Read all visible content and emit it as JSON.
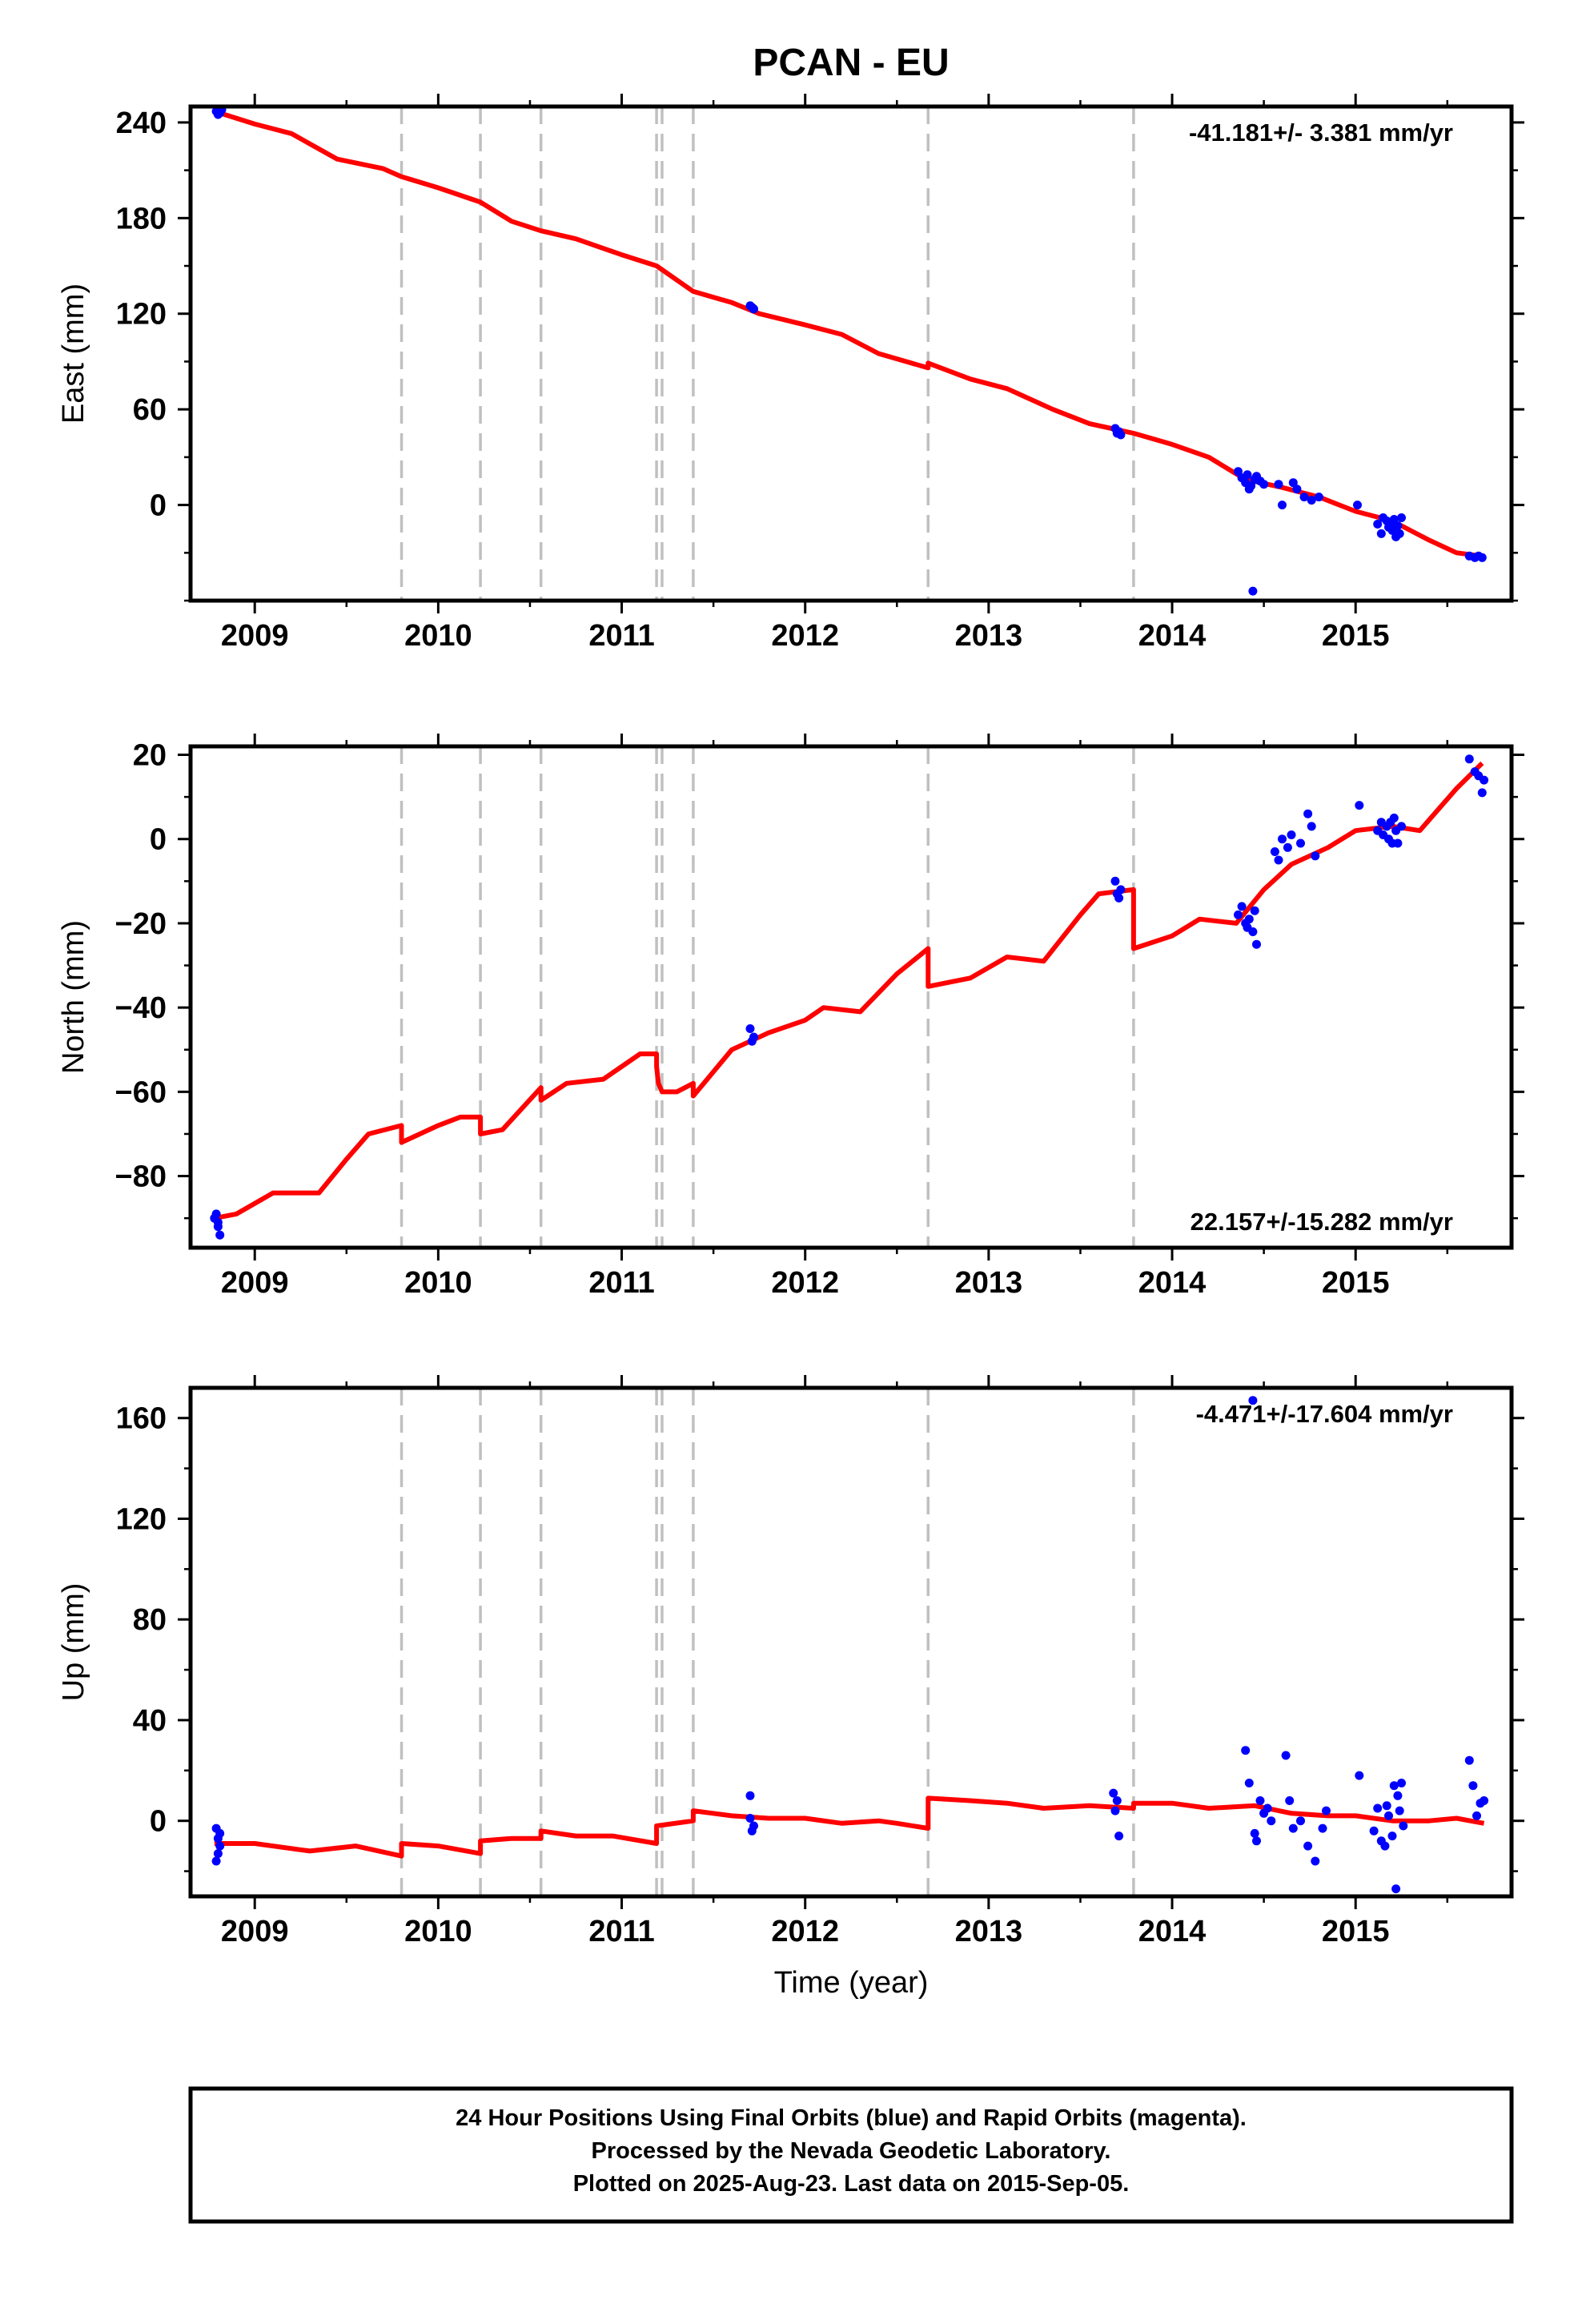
{
  "title": "PCAN - EU",
  "colors": {
    "model": "#ff0000",
    "final": "#0000ff",
    "rapid": "#ff00ff",
    "events": "#c0c0c0",
    "frame": "#000000"
  },
  "xaxis": {
    "label": "Time (year)",
    "range": [
      2008.65,
      2015.85
    ],
    "ticks": [
      2009,
      2010,
      2011,
      2012,
      2013,
      2014,
      2015
    ]
  },
  "event_lines": [
    2009.8,
    2010.23,
    2010.56,
    2011.19,
    2011.22,
    2011.39,
    2012.67,
    2013.79
  ],
  "caption": {
    "line1": "24 Hour Positions Using Final Orbits (blue) and Rapid Orbits (magenta).",
    "line2": "Processed by the Nevada Geodetic Laboratory.",
    "line3": "Plotted on 2025-Aug-23. Last data on 2015-Sep-05."
  },
  "chart_data": [
    {
      "type": "scatter",
      "component": "east",
      "ylabel": "East (mm)",
      "ylim": [
        -60,
        250
      ],
      "yticks": [
        0,
        60,
        120,
        180,
        240
      ],
      "rate_label": "-41.181+/- 3.381 mm/yr",
      "rate_position": "top-right",
      "points": [
        [
          2008.79,
          247
        ],
        [
          2008.8,
          245
        ],
        [
          2008.82,
          248
        ],
        [
          2008.81,
          246
        ],
        [
          2011.7,
          125
        ],
        [
          2011.72,
          123
        ],
        [
          2011.71,
          124
        ],
        [
          2013.69,
          48
        ],
        [
          2013.7,
          45
        ],
        [
          2013.72,
          44
        ],
        [
          2013.71,
          46
        ],
        [
          2014.36,
          21
        ],
        [
          2014.38,
          17
        ],
        [
          2014.4,
          14
        ],
        [
          2014.41,
          19
        ],
        [
          2014.42,
          10
        ],
        [
          2014.43,
          12
        ],
        [
          2014.45,
          16
        ],
        [
          2014.46,
          18
        ],
        [
          2014.48,
          15
        ],
        [
          2014.5,
          13
        ],
        [
          2014.44,
          -54
        ],
        [
          2014.58,
          13
        ],
        [
          2014.6,
          0
        ],
        [
          2014.66,
          14
        ],
        [
          2014.68,
          10
        ],
        [
          2014.72,
          5
        ],
        [
          2014.76,
          3
        ],
        [
          2014.8,
          5
        ],
        [
          2015.01,
          0
        ],
        [
          2015.12,
          -12
        ],
        [
          2015.14,
          -18
        ],
        [
          2015.15,
          -8
        ],
        [
          2015.17,
          -10
        ],
        [
          2015.18,
          -14
        ],
        [
          2015.19,
          -12
        ],
        [
          2015.2,
          -16
        ],
        [
          2015.21,
          -9
        ],
        [
          2015.22,
          -20
        ],
        [
          2015.23,
          -13
        ],
        [
          2015.24,
          -18
        ],
        [
          2015.25,
          -8
        ],
        [
          2015.62,
          -32
        ],
        [
          2015.65,
          -33
        ],
        [
          2015.67,
          -32
        ],
        [
          2015.69,
          -33
        ]
      ],
      "model_line": [
        [
          2008.78,
          247
        ],
        [
          2009.0,
          239
        ],
        [
          2009.2,
          233
        ],
        [
          2009.45,
          217
        ],
        [
          2009.7,
          211
        ],
        [
          2009.8,
          206
        ],
        [
          2010.0,
          199
        ],
        [
          2010.23,
          190
        ],
        [
          2010.4,
          178
        ],
        [
          2010.56,
          172
        ],
        [
          2010.75,
          167
        ],
        [
          2011.0,
          157
        ],
        [
          2011.19,
          150
        ],
        [
          2011.39,
          134
        ],
        [
          2011.6,
          127
        ],
        [
          2011.75,
          120
        ],
        [
          2012.0,
          113
        ],
        [
          2012.2,
          107
        ],
        [
          2012.4,
          95
        ],
        [
          2012.67,
          86
        ],
        [
          2012.67,
          89
        ],
        [
          2012.9,
          79
        ],
        [
          2013.1,
          73
        ],
        [
          2013.35,
          60
        ],
        [
          2013.55,
          51
        ],
        [
          2013.79,
          45
        ],
        [
          2014.0,
          38
        ],
        [
          2014.2,
          30
        ],
        [
          2014.4,
          16
        ],
        [
          2014.6,
          11
        ],
        [
          2014.8,
          5
        ],
        [
          2015.0,
          -4
        ],
        [
          2015.2,
          -10
        ],
        [
          2015.4,
          -22
        ],
        [
          2015.55,
          -30
        ],
        [
          2015.69,
          -32
        ]
      ]
    },
    {
      "type": "scatter",
      "component": "north",
      "ylabel": "North (mm)",
      "ylim": [
        -97,
        22
      ],
      "yticks": [
        -80,
        -60,
        -40,
        -20,
        0,
        20
      ],
      "rate_label": "22.157+/-15.282 mm/yr",
      "rate_position": "bottom-right",
      "points": [
        [
          2008.79,
          -89
        ],
        [
          2008.8,
          -92
        ],
        [
          2008.81,
          -94
        ],
        [
          2008.8,
          -91
        ],
        [
          2008.78,
          -90
        ],
        [
          2011.7,
          -45
        ],
        [
          2011.71,
          -48
        ],
        [
          2011.72,
          -47
        ],
        [
          2013.69,
          -10
        ],
        [
          2013.7,
          -13
        ],
        [
          2013.71,
          -14
        ],
        [
          2013.72,
          -12
        ],
        [
          2014.36,
          -18
        ],
        [
          2014.38,
          -16
        ],
        [
          2014.4,
          -20
        ],
        [
          2014.41,
          -21
        ],
        [
          2014.42,
          -19
        ],
        [
          2014.44,
          -22
        ],
        [
          2014.45,
          -17
        ],
        [
          2014.46,
          -25
        ],
        [
          2014.56,
          -3
        ],
        [
          2014.58,
          -5
        ],
        [
          2014.6,
          0
        ],
        [
          2014.63,
          -2
        ],
        [
          2014.65,
          1
        ],
        [
          2014.7,
          -1
        ],
        [
          2014.74,
          6
        ],
        [
          2014.76,
          3
        ],
        [
          2014.78,
          -4
        ],
        [
          2015.02,
          8
        ],
        [
          2015.12,
          2
        ],
        [
          2015.14,
          4
        ],
        [
          2015.15,
          1
        ],
        [
          2015.17,
          3
        ],
        [
          2015.18,
          0
        ],
        [
          2015.19,
          4
        ],
        [
          2015.2,
          -1
        ],
        [
          2015.21,
          5
        ],
        [
          2015.22,
          2
        ],
        [
          2015.23,
          -1
        ],
        [
          2015.25,
          3
        ],
        [
          2015.62,
          19
        ],
        [
          2015.65,
          16
        ],
        [
          2015.67,
          15
        ],
        [
          2015.69,
          11
        ],
        [
          2015.7,
          14
        ]
      ],
      "model_line": [
        [
          2008.78,
          -90
        ],
        [
          2008.9,
          -89
        ],
        [
          2009.1,
          -84
        ],
        [
          2009.25,
          -84
        ],
        [
          2009.35,
          -84
        ],
        [
          2009.5,
          -76
        ],
        [
          2009.62,
          -70
        ],
        [
          2009.8,
          -68
        ],
        [
          2009.8,
          -72
        ],
        [
          2010.0,
          -68
        ],
        [
          2010.12,
          -66
        ],
        [
          2010.23,
          -66
        ],
        [
          2010.23,
          -70
        ],
        [
          2010.35,
          -69
        ],
        [
          2010.56,
          -59
        ],
        [
          2010.56,
          -62
        ],
        [
          2010.7,
          -58
        ],
        [
          2010.9,
          -57
        ],
        [
          2011.1,
          -51
        ],
        [
          2011.19,
          -51
        ],
        [
          2011.19,
          -54
        ],
        [
          2011.2,
          -58
        ],
        [
          2011.22,
          -60
        ],
        [
          2011.3,
          -60
        ],
        [
          2011.39,
          -58
        ],
        [
          2011.39,
          -61
        ],
        [
          2011.6,
          -50
        ],
        [
          2011.8,
          -46
        ],
        [
          2012.0,
          -43
        ],
        [
          2012.1,
          -40
        ],
        [
          2012.3,
          -41
        ],
        [
          2012.5,
          -32
        ],
        [
          2012.67,
          -26
        ],
        [
          2012.67,
          -35
        ],
        [
          2012.9,
          -33
        ],
        [
          2013.1,
          -28
        ],
        [
          2013.3,
          -29
        ],
        [
          2013.5,
          -18
        ],
        [
          2013.6,
          -13
        ],
        [
          2013.79,
          -12
        ],
        [
          2013.79,
          -26
        ],
        [
          2014.0,
          -23
        ],
        [
          2014.15,
          -19
        ],
        [
          2014.35,
          -20
        ],
        [
          2014.5,
          -12
        ],
        [
          2014.65,
          -6
        ],
        [
          2014.85,
          -2
        ],
        [
          2015.0,
          2
        ],
        [
          2015.2,
          3
        ],
        [
          2015.35,
          2
        ],
        [
          2015.55,
          12
        ],
        [
          2015.69,
          18
        ]
      ]
    },
    {
      "type": "scatter",
      "component": "up",
      "xlabel": "Time (year)",
      "ylabel": "Up (mm)",
      "ylim": [
        -30,
        172
      ],
      "yticks": [
        0,
        40,
        80,
        120,
        160
      ],
      "rate_label": "-4.471+/-17.604 mm/yr",
      "rate_position": "top-right",
      "points": [
        [
          2008.79,
          -3
        ],
        [
          2008.8,
          -7
        ],
        [
          2008.81,
          -10
        ],
        [
          2008.8,
          -13
        ],
        [
          2008.79,
          -16
        ],
        [
          2008.81,
          -5
        ],
        [
          2011.7,
          10
        ],
        [
          2011.71,
          -4
        ],
        [
          2011.72,
          -2
        ],
        [
          2011.7,
          1
        ],
        [
          2013.68,
          11
        ],
        [
          2013.69,
          4
        ],
        [
          2013.7,
          8
        ],
        [
          2013.71,
          -6
        ],
        [
          2014.4,
          28
        ],
        [
          2014.42,
          15
        ],
        [
          2014.44,
          167
        ],
        [
          2014.45,
          -5
        ],
        [
          2014.46,
          -8
        ],
        [
          2014.48,
          8
        ],
        [
          2014.5,
          3
        ],
        [
          2014.52,
          5
        ],
        [
          2014.54,
          0
        ],
        [
          2014.62,
          26
        ],
        [
          2014.64,
          8
        ],
        [
          2014.66,
          -3
        ],
        [
          2014.7,
          0
        ],
        [
          2014.74,
          -10
        ],
        [
          2014.78,
          -16
        ],
        [
          2014.82,
          -3
        ],
        [
          2014.84,
          4
        ],
        [
          2015.02,
          18
        ],
        [
          2015.1,
          -4
        ],
        [
          2015.12,
          5
        ],
        [
          2015.14,
          -8
        ],
        [
          2015.16,
          -10
        ],
        [
          2015.17,
          6
        ],
        [
          2015.18,
          2
        ],
        [
          2015.2,
          -6
        ],
        [
          2015.21,
          14
        ],
        [
          2015.22,
          -27
        ],
        [
          2015.23,
          10
        ],
        [
          2015.24,
          4
        ],
        [
          2015.25,
          15
        ],
        [
          2015.26,
          -2
        ],
        [
          2015.62,
          24
        ],
        [
          2015.64,
          14
        ],
        [
          2015.66,
          2
        ],
        [
          2015.68,
          7
        ],
        [
          2015.7,
          8
        ]
      ],
      "model_line": [
        [
          2008.78,
          -9
        ],
        [
          2009.0,
          -9
        ],
        [
          2009.3,
          -12
        ],
        [
          2009.55,
          -10
        ],
        [
          2009.8,
          -14
        ],
        [
          2009.8,
          -9
        ],
        [
          2010.0,
          -10
        ],
        [
          2010.23,
          -13
        ],
        [
          2010.23,
          -8
        ],
        [
          2010.4,
          -7
        ],
        [
          2010.56,
          -7
        ],
        [
          2010.56,
          -4
        ],
        [
          2010.75,
          -6
        ],
        [
          2010.95,
          -6
        ],
        [
          2011.19,
          -9
        ],
        [
          2011.19,
          -2
        ],
        [
          2011.39,
          0
        ],
        [
          2011.39,
          4
        ],
        [
          2011.6,
          2
        ],
        [
          2011.8,
          1
        ],
        [
          2012.0,
          1
        ],
        [
          2012.2,
          -1
        ],
        [
          2012.4,
          0
        ],
        [
          2012.5,
          -1
        ],
        [
          2012.67,
          -3
        ],
        [
          2012.67,
          9
        ],
        [
          2012.9,
          8
        ],
        [
          2013.1,
          7
        ],
        [
          2013.3,
          5
        ],
        [
          2013.55,
          6
        ],
        [
          2013.79,
          5
        ],
        [
          2013.79,
          7
        ],
        [
          2014.0,
          7
        ],
        [
          2014.2,
          5
        ],
        [
          2014.45,
          6
        ],
        [
          2014.65,
          3
        ],
        [
          2014.85,
          2
        ],
        [
          2015.0,
          2
        ],
        [
          2015.2,
          0
        ],
        [
          2015.4,
          0
        ],
        [
          2015.55,
          1
        ],
        [
          2015.7,
          -1
        ]
      ]
    }
  ]
}
